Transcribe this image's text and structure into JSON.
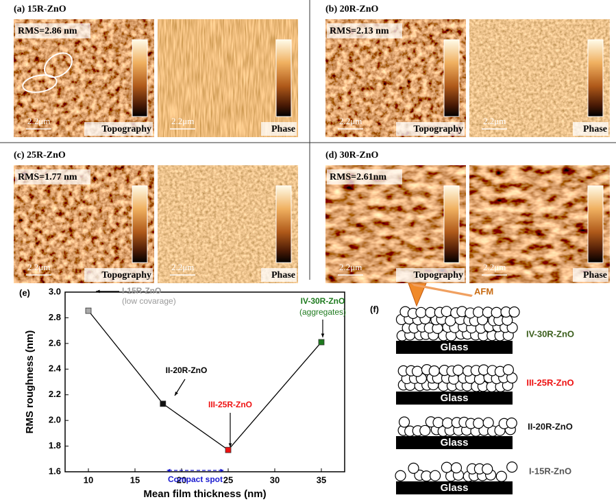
{
  "panels": [
    {
      "label": "(a) 15R-ZnO",
      "rms": "RMS=2.86 nm",
      "scale_topography": "2.2μm",
      "scale_phase": "2.2μm",
      "topography": "Topography",
      "phase": "Phase"
    },
    {
      "label": "(b) 20R-ZnO",
      "rms": "RMS=2.13 nm",
      "scale_topography": "2.2μm",
      "scale_phase": "2.2μm",
      "topography": "Topography",
      "phase": "Phase"
    },
    {
      "label": "(c) 25R-ZnO",
      "rms": "RMS=1.77 nm",
      "scale_topography": "2.2μm",
      "scale_phase": "2.2μm",
      "topography": "Topography",
      "phase": "Phase"
    },
    {
      "label": "(d) 30R-ZnO",
      "rms": "RMS=2.61nm",
      "scale_topography": "2.2μm",
      "scale_phase": "2.2μm",
      "topography": "Topography",
      "phase": "Phase"
    }
  ],
  "chart_data": {
    "type": "line",
    "panel_label": "(e)",
    "x_label": "Mean film thickness (nm)",
    "y_label": "RMS roughness (nm)",
    "x": [
      10,
      18,
      25,
      35
    ],
    "series": [
      {
        "values": [
          2.855,
          2.13,
          1.77,
          2.61
        ],
        "color": "#000000",
        "marker_colors": [
          "#aaaaaa",
          "#111111",
          "#ee1111",
          "#1e7a1e"
        ]
      }
    ],
    "xlim": [
      7.5,
      37.5
    ],
    "ylim": [
      1.6,
      3.0
    ],
    "xticks": [
      10,
      15,
      20,
      25,
      30,
      35
    ],
    "yticks": [
      1.6,
      1.8,
      {
        "value": 2.0,
        "label": "2.0"
      },
      2.2,
      2.4,
      2.6,
      2.8,
      {
        "value": 3.0,
        "label": "3.0"
      }
    ],
    "annotations": [
      {
        "text": "I-15R-ZnO",
        "color": "#999999"
      },
      {
        "text": "(low covarage)",
        "color": "#999999"
      },
      {
        "text": "II-20R-ZnO",
        "color": "#000000"
      },
      {
        "text": "III-25R-ZnO",
        "color": "#ee1111"
      },
      {
        "text": "IV-30R-ZnO",
        "color": "#1e7a1e"
      },
      {
        "text": "(aggregates)",
        "color": "#1e7a1e"
      },
      {
        "text": "Compact spot",
        "color": "#1a1ad0"
      }
    ]
  },
  "schematic": {
    "panel_label": "(f)",
    "probe": "AFM",
    "substrate": "Glass",
    "layers": [
      {
        "label": "IV-30R-ZnO",
        "color": "#3b5e1c"
      },
      {
        "label": "III-25R-ZnO",
        "color": "#ee1111"
      },
      {
        "label": "II-20R-ZnO",
        "color": "#111111"
      },
      {
        "label": "I-15R-ZnO",
        "color": "#555555"
      }
    ]
  }
}
